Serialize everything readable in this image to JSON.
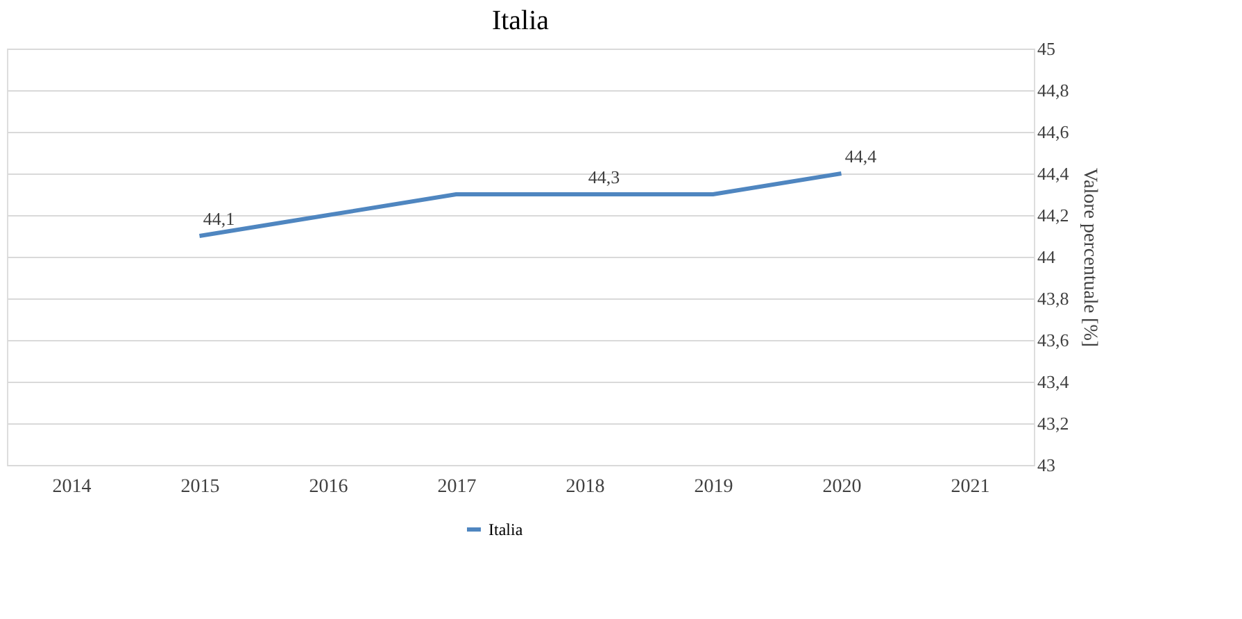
{
  "chart_data": {
    "type": "line",
    "title": "Italia",
    "ylabel": "Valore percentuale [%]",
    "categories": [
      "2014",
      "2015",
      "2016",
      "2017",
      "2018",
      "2019",
      "2020",
      "2021"
    ],
    "series": [
      {
        "name": "Italia",
        "color": "#4f86c0",
        "values": [
          null,
          44.1,
          44.2,
          44.3,
          44.3,
          44.3,
          44.4,
          null
        ],
        "value_labels": [
          null,
          "44,1",
          null,
          null,
          "44,3",
          null,
          "44,4",
          null
        ]
      }
    ],
    "ylim": [
      43,
      45
    ],
    "yticks": [
      43,
      {
        "value": 43.2,
        "label": "43,2"
      },
      {
        "value": 43.4,
        "label": "43,4"
      },
      {
        "value": 43.6,
        "label": "43,6"
      },
      {
        "value": 43.8,
        "label": "43,8"
      },
      44,
      {
        "value": 44.2,
        "label": "44,2"
      },
      {
        "value": 44.4,
        "label": "44,4"
      },
      {
        "value": 44.6,
        "label": "44,6"
      },
      {
        "value": 44.8,
        "label": "44,8"
      },
      45
    ],
    "grid": "y",
    "legend": "bottom",
    "marker": "none",
    "line_style": "solid"
  }
}
